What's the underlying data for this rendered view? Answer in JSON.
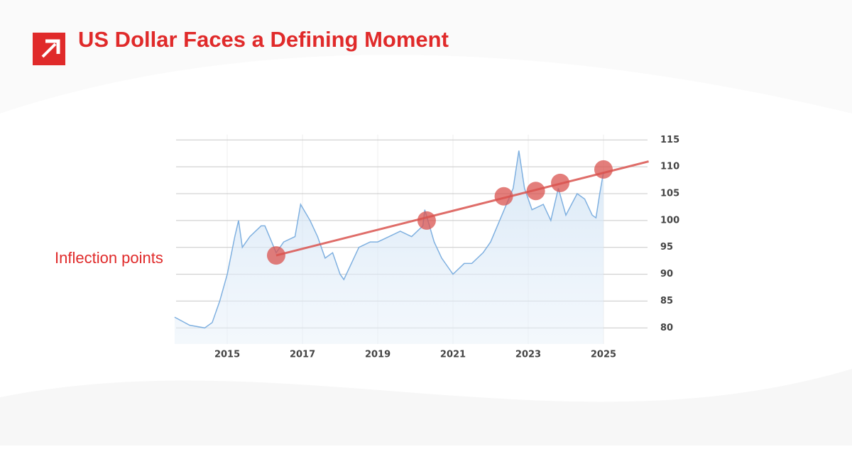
{
  "chart_data": {
    "type": "line",
    "title": "US Dollar Faces a Defining Moment",
    "x": [
      2013.6,
      2014.0,
      2014.4,
      2014.6,
      2014.8,
      2015.0,
      2015.2,
      2015.3,
      2015.4,
      2015.6,
      2015.9,
      2016.0,
      2016.3,
      2016.5,
      2016.8,
      2016.95,
      2017.2,
      2017.4,
      2017.6,
      2017.8,
      2018.0,
      2018.1,
      2018.3,
      2018.5,
      2018.8,
      2019.0,
      2019.3,
      2019.6,
      2019.9,
      2020.2,
      2020.25,
      2020.5,
      2020.7,
      2020.9,
      2021.0,
      2021.3,
      2021.5,
      2021.8,
      2022.0,
      2022.3,
      2022.6,
      2022.75,
      2022.9,
      2023.1,
      2023.4,
      2023.6,
      2023.8,
      2024.0,
      2024.3,
      2024.5,
      2024.7,
      2024.8,
      2024.9,
      2025.0
    ],
    "series": [
      {
        "color": "#7fb0e0",
        "values": [
          82,
          80.5,
          80,
          81,
          85,
          90,
          97,
          100,
          95,
          97,
          99,
          99,
          94,
          96,
          97,
          103,
          100,
          97,
          93,
          94,
          90,
          89,
          92,
          95,
          96,
          96,
          97,
          98,
          97,
          99,
          102,
          96,
          93,
          91,
          90,
          92,
          92,
          94,
          96,
          101,
          106,
          113,
          106,
          102,
          103,
          100,
          106,
          101,
          105,
          104,
          101,
          100.5,
          105,
          109
        ]
      }
    ],
    "trendline": {
      "color": "#d9534f",
      "x": [
        2016.3,
        2026.2
      ],
      "y": [
        93.5,
        111
      ]
    },
    "inflection_points": {
      "label": "Inflection points",
      "x": [
        2016.3,
        2020.3,
        2022.35,
        2023.2,
        2023.85,
        2025.0
      ],
      "y": [
        93.5,
        100,
        104.5,
        105.5,
        107,
        109.5
      ]
    },
    "xlim": [
      2013.64,
      2026.17
    ],
    "ylim": [
      77,
      116
    ],
    "xticks": [
      2015,
      2017,
      2019,
      2021,
      2023,
      2025
    ],
    "yticks": [
      80,
      85,
      90,
      95,
      100,
      105,
      110,
      115
    ],
    "grid": true
  }
}
